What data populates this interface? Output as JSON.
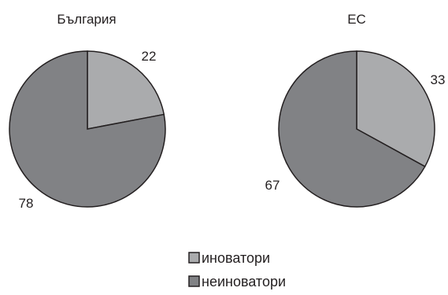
{
  "chart_data": [
    {
      "type": "pie",
      "title": "България",
      "slices": [
        {
          "label": "иноватори",
          "value": 22,
          "color": "#aaabad"
        },
        {
          "label": "неиноватори",
          "value": 78,
          "color": "#818285"
        }
      ],
      "legend": "bottom-center"
    },
    {
      "type": "pie",
      "title": "ЕС",
      "slices": [
        {
          "label": "иноватори",
          "value": 33,
          "color": "#aaabad"
        },
        {
          "label": "неиноватори",
          "value": 67,
          "color": "#818285"
        }
      ],
      "legend": "bottom-center"
    }
  ],
  "legend": {
    "items": [
      {
        "label": "иноватори",
        "color": "#aaabad"
      },
      {
        "label": "неиноватори",
        "color": "#818285"
      }
    ]
  },
  "stroke_color": "#231f20"
}
